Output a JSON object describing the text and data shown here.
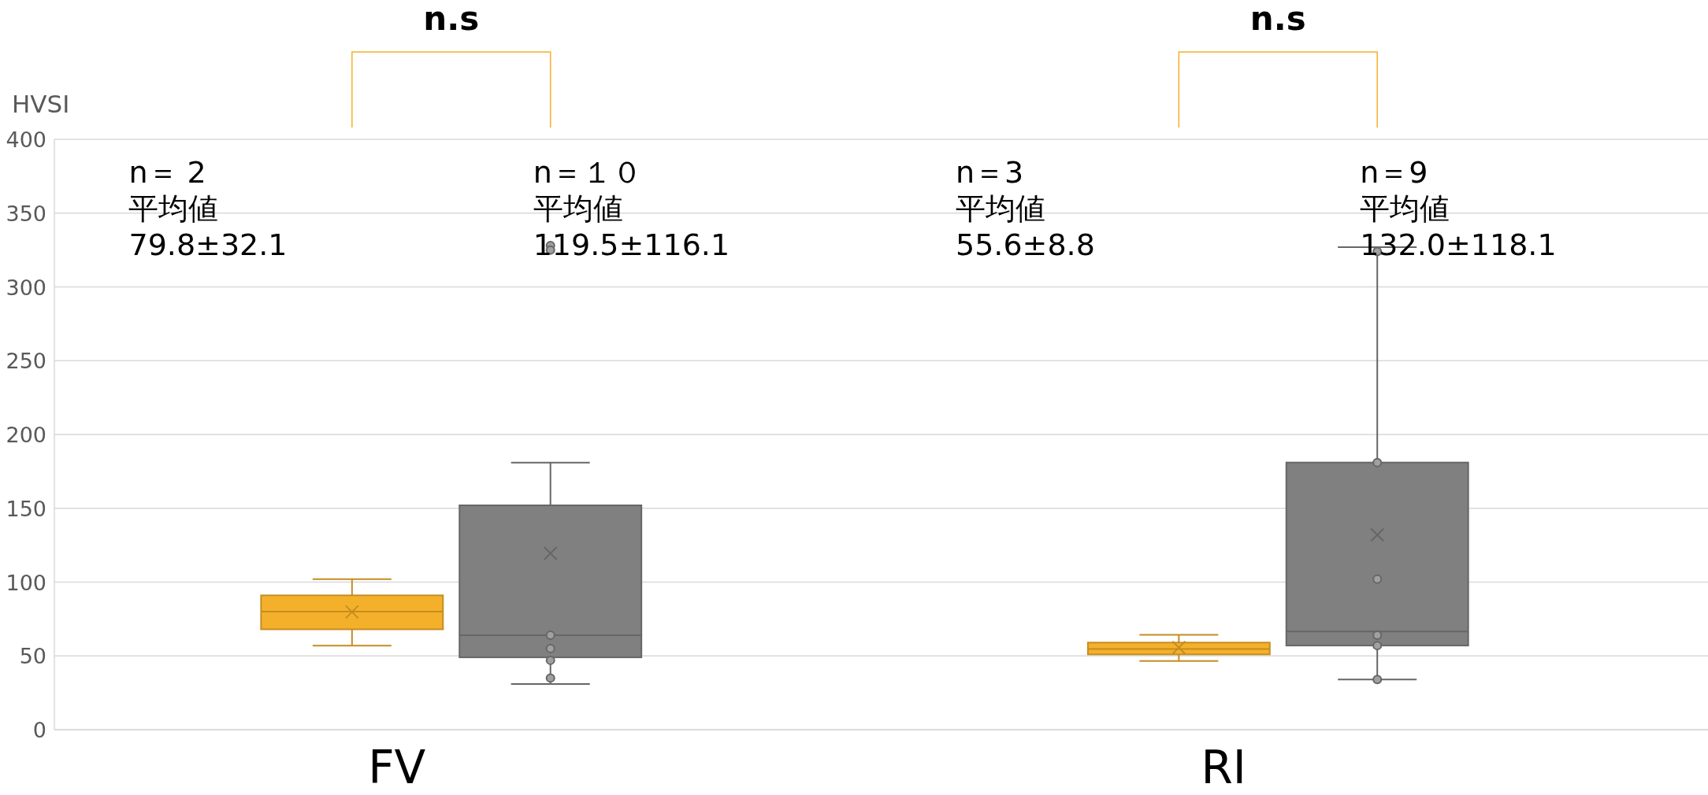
{
  "chart_data": {
    "type": "box",
    "ylabel": "HVSI",
    "categories": [
      "FV",
      "RI"
    ],
    "ylim": [
      0,
      400
    ],
    "yticks": [
      0,
      50,
      100,
      150,
      200,
      250,
      300,
      350,
      400
    ],
    "grid": "y",
    "series": [
      {
        "color": "#f5b02b",
        "boxes": [
          {
            "low": 57,
            "q1": 68,
            "median": 80,
            "q3": 91,
            "high": 102,
            "mean": 79.8
          },
          {
            "low": 46.5,
            "q1": 51,
            "median": 54.7,
            "q3": 59,
            "high": 64.3,
            "mean": 55.6
          }
        ]
      },
      {
        "color": "#808080",
        "boxes": [
          {
            "low": 31,
            "q1": 49,
            "median": 64,
            "q3": 152,
            "high": 181,
            "mean": 119.5,
            "outliers": [
              328,
              325,
              64,
              55,
              47,
              35
            ]
          },
          {
            "low": 34,
            "q1": 57,
            "median": 66.5,
            "q3": 181,
            "high": 327,
            "mean": 132.0,
            "outliers": [
              324,
              181,
              102,
              64,
              57,
              34
            ]
          }
        ]
      }
    ],
    "annotations": [
      "n＝ 2",
      "平均値",
      "79.8±32.1",
      "n＝１０",
      "平均値",
      "119.5±116.1",
      "n＝3",
      "平均値",
      "55.6±8.8",
      "n＝9",
      "平均値",
      "132.0±118.1",
      "n.s",
      "n.s"
    ]
  }
}
